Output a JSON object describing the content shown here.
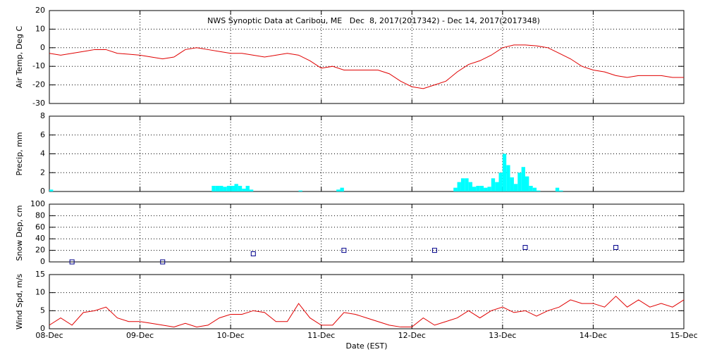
{
  "chart_data": [
    {
      "type": "line",
      "title": "NWS Synoptic Data at Caribou, ME   Dec  8, 2017(2017342) - Dec 14, 2017(2017348)",
      "y_label": "Air Temp, Deg C",
      "xlim": [
        0,
        168
      ],
      "ylim": [
        -30,
        20
      ],
      "yticks": [
        -30,
        -20,
        -10,
        0,
        10,
        20
      ],
      "grid": true,
      "x": [
        0,
        3,
        6,
        9,
        12,
        15,
        18,
        21,
        24,
        27,
        30,
        33,
        36,
        39,
        42,
        45,
        48,
        51,
        54,
        57,
        60,
        63,
        66,
        69,
        72,
        75,
        78,
        81,
        84,
        87,
        90,
        93,
        96,
        99,
        102,
        105,
        108,
        111,
        114,
        117,
        120,
        123,
        126,
        129,
        132,
        135,
        138,
        141,
        144,
        147,
        150,
        153,
        156,
        159,
        162,
        165,
        168
      ],
      "color": "#e00000",
      "values": [
        -3,
        -4,
        -3,
        -2,
        -1,
        -1,
        -3,
        -3.5,
        -4,
        -5,
        -6,
        -5,
        -1,
        0,
        -1,
        -2,
        -3,
        -3,
        -4,
        -5,
        -4,
        -3,
        -4,
        -7,
        -11,
        -10,
        -12,
        -12,
        -12,
        -12,
        -14,
        -18,
        -21,
        -22,
        -20,
        -18,
        -13,
        -9,
        -7,
        -4,
        0,
        1.5,
        1.5,
        1,
        0,
        -3,
        -6,
        -10,
        -12,
        -13,
        -15,
        -16,
        -15,
        -15,
        -15,
        -16,
        -16
      ]
    },
    {
      "type": "bar",
      "y_label": "Precip, mm",
      "xlim": [
        0,
        168
      ],
      "ylim": [
        0,
        8
      ],
      "yticks": [
        0,
        2,
        4,
        6,
        8
      ],
      "grid": true,
      "color": "#00ffff",
      "x": [
        0,
        43,
        44,
        45,
        46,
        47,
        48,
        49,
        50,
        51,
        52,
        53,
        66,
        76,
        77,
        107,
        108,
        109,
        110,
        111,
        112,
        113,
        114,
        115,
        116,
        117,
        118,
        119,
        120,
        121,
        122,
        123,
        124,
        125,
        126,
        127,
        128,
        129,
        134,
        135
      ],
      "values": [
        0.2,
        0.6,
        0.6,
        0.6,
        0.5,
        0.6,
        0.6,
        0.8,
        0.6,
        0.3,
        0.6,
        0.2,
        0.1,
        0.2,
        0.4,
        0.4,
        1.0,
        1.4,
        1.4,
        1.0,
        0.5,
        0.6,
        0.6,
        0.4,
        0.5,
        1.4,
        1.0,
        2.0,
        4.0,
        2.8,
        1.5,
        0.8,
        2.0,
        2.6,
        1.6,
        0.6,
        0.4,
        0.1,
        0.4,
        0.1
      ]
    },
    {
      "type": "scatter",
      "y_label": "Snow Dep, cm",
      "xlim": [
        0,
        168
      ],
      "ylim": [
        0,
        100
      ],
      "yticks": [
        0,
        20,
        40,
        60,
        80,
        100
      ],
      "grid": true,
      "color": "#00008b",
      "x": [
        6,
        30,
        54,
        78,
        102,
        126,
        150
      ],
      "values": [
        0,
        0,
        14,
        20,
        20,
        25,
        25
      ]
    },
    {
      "type": "line",
      "y_label": "Wind Spd, m/s",
      "x_label": "Date (EST)",
      "xlim": [
        0,
        168
      ],
      "ylim": [
        0,
        15
      ],
      "yticks": [
        0,
        5,
        10,
        15
      ],
      "grid": true,
      "color": "#e00000",
      "xticks": [
        {
          "value": 0,
          "label": "08-Dec"
        },
        {
          "value": 24,
          "label": "09-Dec"
        },
        {
          "value": 48,
          "label": "10-Dec"
        },
        {
          "value": 72,
          "label": "11-Dec"
        },
        {
          "value": 96,
          "label": "12-Dec"
        },
        {
          "value": 120,
          "label": "13-Dec"
        },
        {
          "value": 144,
          "label": "14-Dec"
        },
        {
          "value": 168,
          "label": "15-Dec"
        }
      ],
      "x": [
        0,
        3,
        6,
        9,
        12,
        15,
        18,
        21,
        24,
        27,
        30,
        33,
        36,
        39,
        42,
        45,
        48,
        51,
        54,
        57,
        60,
        63,
        66,
        69,
        72,
        75,
        78,
        81,
        84,
        87,
        90,
        93,
        96,
        99,
        102,
        105,
        108,
        111,
        114,
        117,
        120,
        123,
        126,
        129,
        132,
        135,
        138,
        141,
        144,
        147,
        150,
        153,
        156,
        159,
        162,
        165,
        168
      ],
      "values": [
        1,
        3,
        1,
        4.5,
        5,
        6,
        3,
        2,
        2,
        1.5,
        1,
        0.5,
        1.5,
        0.5,
        1,
        3,
        4,
        4,
        5,
        4.5,
        2,
        2,
        7,
        3,
        1,
        1,
        4.5,
        4,
        3,
        2,
        1,
        0.5,
        0.5,
        3,
        1,
        2,
        3,
        5,
        3,
        5,
        6,
        4.5,
        5,
        3.5,
        5,
        6,
        8,
        7,
        7,
        6,
        9,
        6,
        8,
        6,
        7,
        6,
        8
      ]
    }
  ]
}
